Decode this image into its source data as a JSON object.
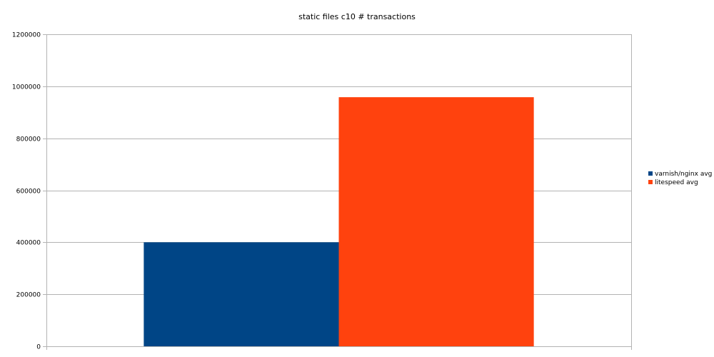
{
  "chart_data": {
    "type": "bar",
    "title": "static files c10 # transactions",
    "xlabel": "",
    "ylabel": "",
    "categories": [
      ""
    ],
    "series": [
      {
        "name": "varnish/nginx avg",
        "values": [
          400000
        ],
        "color": "#004586"
      },
      {
        "name": "litespeed avg",
        "values": [
          958000
        ],
        "color": "#ff420e"
      }
    ],
    "ylim": [
      0,
      1200000
    ],
    "yticks": [
      "0",
      "200000",
      "400000",
      "600000",
      "800000",
      "1000000",
      "1200000"
    ],
    "grid": true,
    "legend_position": "right"
  }
}
